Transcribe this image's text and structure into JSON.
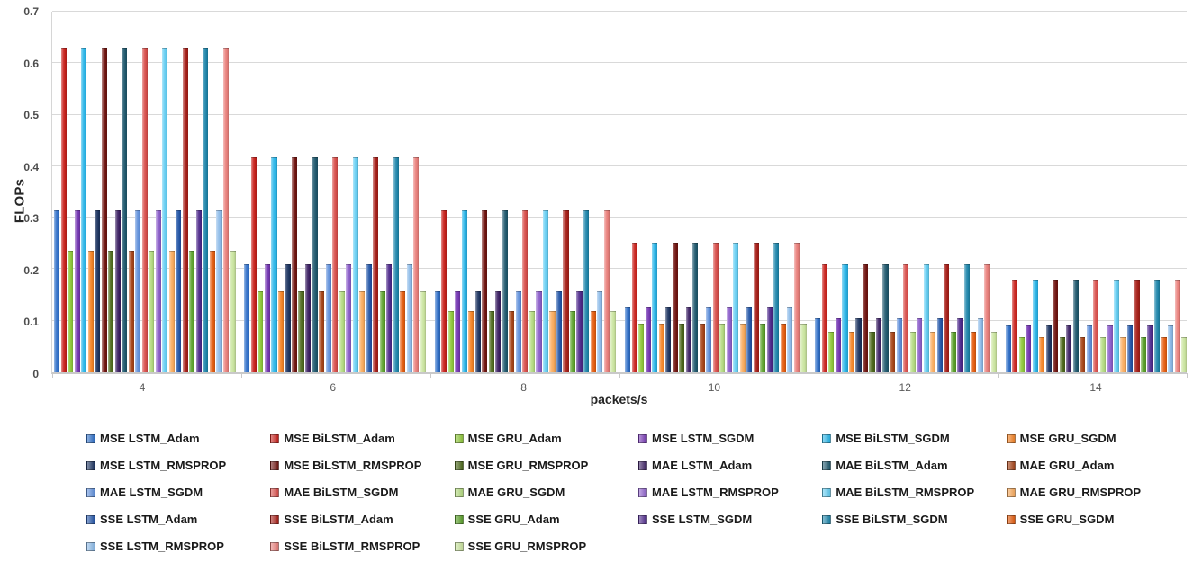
{
  "chart_data": {
    "type": "bar",
    "title": "",
    "xlabel": "packets/s",
    "ylabel": "FLOPs",
    "categories": [
      "4",
      "6",
      "8",
      "10",
      "12",
      "14"
    ],
    "ylim": [
      0,
      0.7
    ],
    "yticks": [
      "0",
      "0.1",
      "0.2",
      "0.3",
      "0.4",
      "0.5",
      "0.6",
      "0.7"
    ],
    "grid": "horizontal",
    "gridline_color": "#d9d9d9",
    "legend_position": "bottom",
    "series": [
      {
        "name": "MSE LSTM_Adam",
        "color": "#3070C8",
        "values": [
          0.315,
          0.21,
          0.158,
          0.126,
          0.105,
          0.09
        ]
      },
      {
        "name": "MSE BiLSTM_Adam",
        "color": "#C8211C",
        "values": [
          0.63,
          0.418,
          0.315,
          0.252,
          0.21,
          0.18
        ]
      },
      {
        "name": "MSE GRU_Adam",
        "color": "#90C93C",
        "values": [
          0.236,
          0.158,
          0.118,
          0.095,
          0.079,
          0.068
        ]
      },
      {
        "name": "MSE LSTM_SGDM",
        "color": "#7638B4",
        "values": [
          0.315,
          0.21,
          0.158,
          0.126,
          0.105,
          0.09
        ]
      },
      {
        "name": "MSE BiLSTM_SGDM",
        "color": "#29B5E8",
        "values": [
          0.63,
          0.418,
          0.315,
          0.252,
          0.21,
          0.18
        ]
      },
      {
        "name": "MSE GRU_SGDM",
        "color": "#F58426",
        "values": [
          0.236,
          0.158,
          0.118,
          0.095,
          0.079,
          0.068
        ]
      },
      {
        "name": "MSE LSTM_RMSPROP",
        "color": "#1D3461",
        "values": [
          0.315,
          0.21,
          0.158,
          0.126,
          0.105,
          0.09
        ]
      },
      {
        "name": "MSE BiLSTM_RMSPROP",
        "color": "#721511",
        "values": [
          0.63,
          0.418,
          0.315,
          0.252,
          0.21,
          0.18
        ]
      },
      {
        "name": "MSE GRU_RMSPROP",
        "color": "#4D691C",
        "values": [
          0.236,
          0.158,
          0.118,
          0.095,
          0.079,
          0.068
        ]
      },
      {
        "name": "MAE LSTM_Adam",
        "color": "#3C2063",
        "values": [
          0.315,
          0.21,
          0.158,
          0.126,
          0.105,
          0.09
        ]
      },
      {
        "name": "MAE BiLSTM_Adam",
        "color": "#20596E",
        "values": [
          0.63,
          0.418,
          0.315,
          0.252,
          0.21,
          0.18
        ]
      },
      {
        "name": "MAE GRU_Adam",
        "color": "#A8461A",
        "values": [
          0.236,
          0.158,
          0.118,
          0.095,
          0.079,
          0.068
        ]
      },
      {
        "name": "MAE LSTM_SGDM",
        "color": "#6090DC",
        "values": [
          0.315,
          0.21,
          0.158,
          0.126,
          0.105,
          0.09
        ]
      },
      {
        "name": "MAE BiLSTM_SGDM",
        "color": "#D94F4B",
        "values": [
          0.63,
          0.418,
          0.315,
          0.252,
          0.21,
          0.18
        ]
      },
      {
        "name": "MAE GRU_SGDM",
        "color": "#B5DC82",
        "values": [
          0.236,
          0.158,
          0.118,
          0.095,
          0.079,
          0.068
        ]
      },
      {
        "name": "MAE LSTM_RMSPROP",
        "color": "#8E60CC",
        "values": [
          0.315,
          0.21,
          0.158,
          0.126,
          0.105,
          0.09
        ]
      },
      {
        "name": "MAE BiLSTM_RMSPROP",
        "color": "#63CDF2",
        "values": [
          0.63,
          0.418,
          0.315,
          0.252,
          0.21,
          0.18
        ]
      },
      {
        "name": "MAE GRU_RMSPROP",
        "color": "#FAAC5E",
        "values": [
          0.236,
          0.158,
          0.118,
          0.095,
          0.079,
          0.068
        ]
      },
      {
        "name": "SSE LSTM_Adam",
        "color": "#2456A8",
        "values": [
          0.315,
          0.21,
          0.158,
          0.126,
          0.105,
          0.09
        ]
      },
      {
        "name": "SSE BiLSTM_Adam",
        "color": "#A82019",
        "values": [
          0.63,
          0.418,
          0.315,
          0.252,
          0.21,
          0.18
        ]
      },
      {
        "name": "SSE GRU_Adam",
        "color": "#5BA12B",
        "values": [
          0.236,
          0.158,
          0.118,
          0.095,
          0.079,
          0.068
        ]
      },
      {
        "name": "SSE LSTM_SGDM",
        "color": "#4F2A8C",
        "values": [
          0.315,
          0.21,
          0.158,
          0.126,
          0.105,
          0.09
        ]
      },
      {
        "name": "SSE BiLSTM_SGDM",
        "color": "#1F87AC",
        "values": [
          0.63,
          0.418,
          0.315,
          0.252,
          0.21,
          0.18
        ]
      },
      {
        "name": "SSE GRU_SGDM",
        "color": "#E55E11",
        "values": [
          0.236,
          0.158,
          0.118,
          0.095,
          0.079,
          0.068
        ]
      },
      {
        "name": "SSE LSTM_RMSPROP",
        "color": "#8CBAE8",
        "values": [
          0.315,
          0.21,
          0.158,
          0.126,
          0.105,
          0.09
        ]
      },
      {
        "name": "SSE BiLSTM_RMSPROP",
        "color": "#EA7F7B",
        "values": [
          0.63,
          0.418,
          0.315,
          0.252,
          0.21,
          0.18
        ]
      },
      {
        "name": "SSE GRU_RMSPROP",
        "color": "#CBE5A0",
        "values": [
          0.236,
          0.158,
          0.118,
          0.095,
          0.079,
          0.068
        ]
      }
    ]
  }
}
